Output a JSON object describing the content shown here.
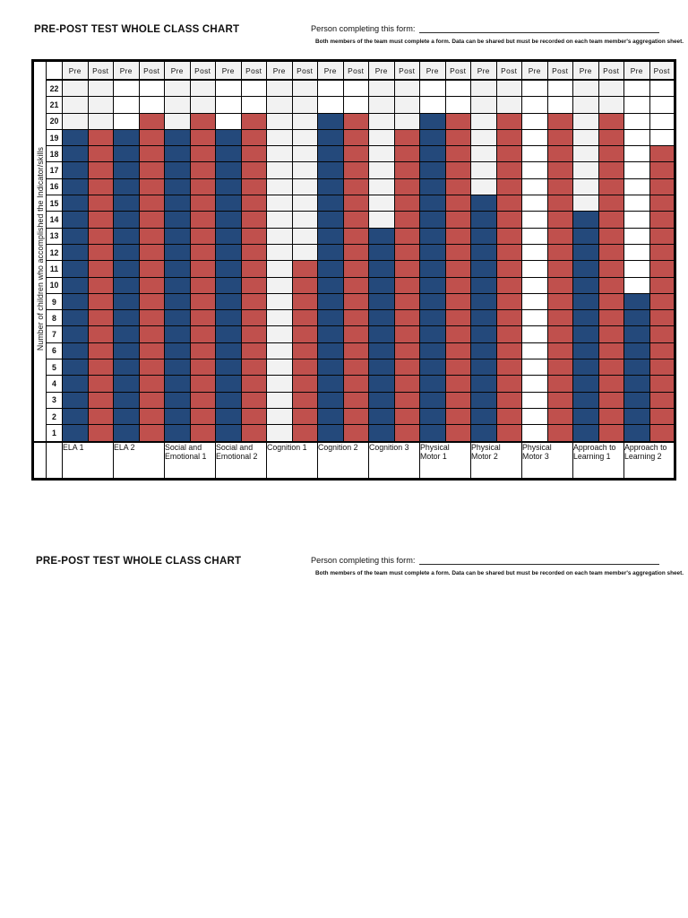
{
  "page": {
    "sections": [
      {
        "title": "PRE-POST TEST WHOLE CLASS CHART",
        "form_label": "Person completing this form:",
        "note": "Both members of the team must complete a form.  Data can be shared but must be recorded on each team member's aggregation sheet."
      },
      {
        "title": "PRE-POST TEST WHOLE CLASS CHART",
        "form_label": "Person completing this form:",
        "note": "Both members of the team must complete a form.  Data can be shared but must be recorded on each team member's aggregation sheet."
      }
    ]
  },
  "chart_data": {
    "type": "bar",
    "title": "PRE-POST TEST WHOLE CLASS CHART",
    "ylabel": "Number of children who accomplished the Indicator/skills",
    "ylim": [
      0,
      22
    ],
    "row_labels": [
      22,
      21,
      20,
      19,
      18,
      17,
      16,
      15,
      14,
      13,
      12,
      11,
      10,
      9,
      8,
      7,
      6,
      5,
      4,
      3,
      2,
      1
    ],
    "column_headers": [
      "Pre",
      "Post"
    ],
    "categories": [
      "ELA 1",
      "ELA 2",
      "Social and Emotional 1",
      "Social and Emotional 2",
      "Cognition 1",
      "Cognition 2",
      "Cognition 3",
      "Physical Motor 1",
      "Physical Motor 2",
      "Physical Motor 3",
      "Approach to Learning 1",
      "Approach to Learning 2"
    ],
    "series": [
      {
        "name": "Pre",
        "color": "#24497B",
        "values": [
          19,
          19,
          19,
          19,
          0,
          20,
          13,
          20,
          15,
          0,
          14,
          9
        ]
      },
      {
        "name": "Post",
        "color": "#C0504D",
        "values": [
          19,
          20,
          20,
          20,
          11,
          20,
          19,
          20,
          20,
          20,
          20,
          18
        ]
      }
    ],
    "empty_cell_colors": {
      "odd_pair": "#F2F2F2",
      "even_pair": "#FFFFFF"
    },
    "header_bg": "#F2F2F2",
    "grid_color": "#000000",
    "legend_position": "none",
    "grid": true
  }
}
